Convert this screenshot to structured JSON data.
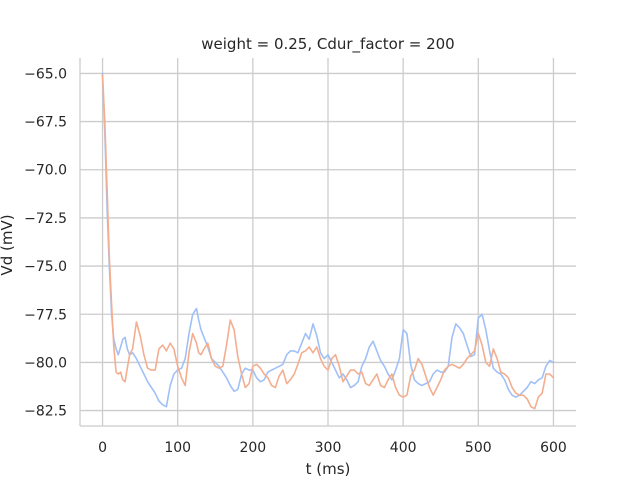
{
  "chart_data": {
    "type": "line",
    "title": "weight = 0.25, Cdur_factor = 200",
    "xlabel": "t (ms)",
    "ylabel": "Vd (mV)",
    "xlim": [
      -30,
      630
    ],
    "ylim": [
      -83.3,
      -64.2
    ],
    "xticks": [
      0,
      100,
      200,
      300,
      400,
      500,
      600
    ],
    "xtick_labels": [
      "0",
      "100",
      "200",
      "300",
      "400",
      "500",
      "600"
    ],
    "yticks": [
      -65.0,
      -67.5,
      -70.0,
      -72.5,
      -75.0,
      -77.5,
      -80.0,
      -82.5
    ],
    "ytick_labels": [
      "−65.0",
      "−67.5",
      "−70.0",
      "−72.5",
      "−75.0",
      "−77.5",
      "−80.0",
      "−82.5"
    ],
    "grid": true,
    "colors": {
      "series_blue": "#a1c0f7",
      "series_orange": "#f4ae8f",
      "grid": "#cccccc",
      "text": "#262626"
    },
    "series": [
      {
        "color": "#a1c0f7",
        "x": [
          0,
          3,
          6,
          9,
          12,
          15,
          18,
          21,
          24,
          27,
          30,
          33,
          36,
          40,
          45,
          50,
          55,
          60,
          65,
          70,
          75,
          80,
          85,
          90,
          95,
          100,
          105,
          110,
          115,
          120,
          125,
          128,
          131,
          135,
          140,
          145,
          150,
          155,
          160,
          165,
          170,
          175,
          180,
          185,
          190,
          195,
          200,
          205,
          210,
          215,
          220,
          225,
          230,
          235,
          240,
          245,
          250,
          255,
          260,
          265,
          270,
          275,
          280,
          285,
          290,
          295,
          300,
          305,
          310,
          315,
          320,
          325,
          330,
          335,
          340,
          345,
          350,
          355,
          360,
          365,
          370,
          375,
          380,
          385,
          390,
          395,
          400,
          405,
          410,
          415,
          420,
          425,
          430,
          435,
          440,
          445,
          450,
          455,
          460,
          465,
          470,
          475,
          480,
          485,
          490,
          495,
          500,
          505,
          510,
          515,
          520,
          525,
          530,
          535,
          540,
          545,
          550,
          555,
          560,
          565,
          570,
          575,
          580,
          585,
          590,
          595,
          600
        ],
        "y": [
          -65.0,
          -68.0,
          -72.0,
          -75.0,
          -77.5,
          -78.8,
          -79.3,
          -79.6,
          -79.2,
          -78.8,
          -78.7,
          -79.3,
          -79.6,
          -79.5,
          -79.8,
          -80.2,
          -80.6,
          -81.0,
          -81.3,
          -81.6,
          -82.0,
          -82.2,
          -82.3,
          -81.2,
          -80.6,
          -80.4,
          -80.3,
          -79.8,
          -78.5,
          -77.5,
          -77.2,
          -77.8,
          -78.3,
          -78.7,
          -79.2,
          -79.8,
          -80.0,
          -80.2,
          -80.5,
          -80.8,
          -81.2,
          -81.5,
          -81.4,
          -80.6,
          -80.3,
          -80.4,
          -80.4,
          -80.8,
          -81.0,
          -80.9,
          -80.5,
          -80.4,
          -80.3,
          -80.2,
          -80.1,
          -79.6,
          -79.4,
          -79.4,
          -79.5,
          -79.0,
          -78.5,
          -78.8,
          -78.0,
          -78.6,
          -79.5,
          -79.8,
          -79.6,
          -80.0,
          -80.4,
          -80.8,
          -80.6,
          -80.9,
          -81.3,
          -81.2,
          -81.0,
          -80.2,
          -79.8,
          -79.2,
          -78.9,
          -79.4,
          -79.9,
          -80.2,
          -80.6,
          -80.9,
          -80.4,
          -79.8,
          -78.3,
          -78.5,
          -80.1,
          -80.9,
          -81.1,
          -81.2,
          -81.1,
          -81.0,
          -80.6,
          -80.4,
          -80.5,
          -80.5,
          -80.2,
          -78.7,
          -78.0,
          -78.2,
          -78.5,
          -79.1,
          -79.7,
          -79.6,
          -77.7,
          -77.5,
          -78.3,
          -79.4,
          -80.3,
          -80.5,
          -80.6,
          -80.9,
          -81.4,
          -81.7,
          -81.8,
          -81.7,
          -81.5,
          -81.3,
          -81.0,
          -81.1,
          -80.9,
          -80.8,
          -80.2,
          -79.9,
          -80.0
        ]
      },
      {
        "color": "#f4ae8f",
        "x": [
          0,
          3,
          6,
          9,
          12,
          15,
          18,
          21,
          24,
          27,
          30,
          33,
          36,
          40,
          45,
          50,
          55,
          60,
          65,
          70,
          75,
          80,
          85,
          90,
          95,
          100,
          105,
          110,
          115,
          120,
          125,
          128,
          131,
          135,
          140,
          145,
          150,
          155,
          160,
          165,
          170,
          175,
          180,
          185,
          190,
          195,
          200,
          205,
          210,
          215,
          220,
          225,
          230,
          235,
          240,
          245,
          250,
          255,
          260,
          265,
          270,
          275,
          280,
          285,
          290,
          295,
          300,
          305,
          310,
          315,
          320,
          325,
          330,
          335,
          340,
          345,
          350,
          355,
          360,
          365,
          370,
          375,
          380,
          385,
          390,
          395,
          400,
          405,
          410,
          415,
          420,
          425,
          430,
          435,
          440,
          445,
          450,
          455,
          460,
          465,
          470,
          475,
          480,
          485,
          490,
          495,
          500,
          505,
          510,
          515,
          520,
          525,
          530,
          535,
          540,
          545,
          550,
          555,
          560,
          565,
          570,
          575,
          580,
          585,
          590,
          595,
          600
        ],
        "y": [
          -65.1,
          -67.5,
          -71.0,
          -74.5,
          -77.0,
          -79.2,
          -80.5,
          -80.6,
          -80.5,
          -80.9,
          -81.0,
          -80.3,
          -79.6,
          -79.3,
          -77.9,
          -78.6,
          -79.6,
          -80.3,
          -80.4,
          -80.4,
          -79.3,
          -79.1,
          -79.4,
          -79.0,
          -79.3,
          -80.2,
          -80.8,
          -81.2,
          -79.5,
          -78.5,
          -79.0,
          -79.5,
          -79.6,
          -79.3,
          -79.0,
          -79.8,
          -80.2,
          -80.3,
          -80.2,
          -79.1,
          -77.8,
          -78.3,
          -79.7,
          -80.6,
          -81.3,
          -81.1,
          -80.2,
          -80.1,
          -80.3,
          -80.6,
          -80.8,
          -81.2,
          -81.3,
          -80.7,
          -80.4,
          -81.1,
          -80.9,
          -80.6,
          -80.1,
          -79.5,
          -79.4,
          -79.2,
          -79.5,
          -79.2,
          -79.8,
          -80.2,
          -80.4,
          -79.8,
          -79.6,
          -80.2,
          -81.0,
          -80.7,
          -80.4,
          -80.4,
          -80.6,
          -80.5,
          -81.1,
          -81.2,
          -80.9,
          -80.6,
          -81.2,
          -81.3,
          -80.9,
          -80.6,
          -81.3,
          -81.7,
          -81.8,
          -81.7,
          -80.7,
          -80.4,
          -79.8,
          -80.1,
          -80.7,
          -81.3,
          -81.7,
          -81.3,
          -80.9,
          -80.4,
          -80.2,
          -80.1,
          -80.2,
          -80.3,
          -80.1,
          -79.8,
          -79.6,
          -79.4,
          -78.5,
          -79.1,
          -80.0,
          -80.2,
          -79.3,
          -79.8,
          -80.5,
          -80.6,
          -80.8,
          -81.3,
          -81.6,
          -81.7,
          -81.7,
          -81.9,
          -82.3,
          -82.4,
          -81.8,
          -81.6,
          -80.6,
          -80.6,
          -80.8
        ]
      }
    ]
  }
}
